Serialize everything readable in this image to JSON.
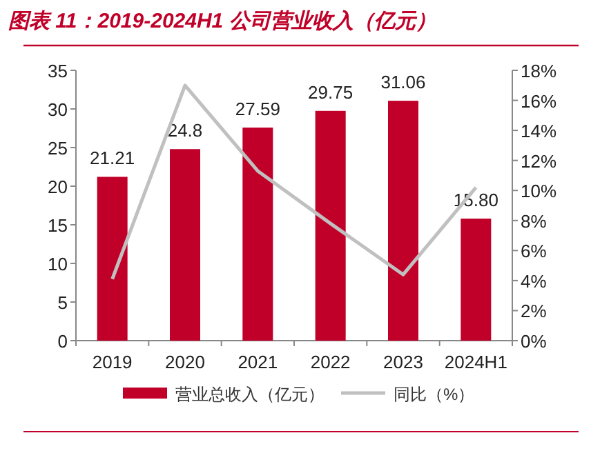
{
  "chart_data": {
    "type": "bar",
    "title": "图表 11：2019-2024H1 公司营业收入（亿元）",
    "categories": [
      "2019",
      "2020",
      "2021",
      "2022",
      "2023",
      "2024H1"
    ],
    "series": [
      {
        "name": "营业总收入（亿元）",
        "color": "#c00028",
        "values": [
          21.21,
          24.8,
          27.59,
          29.75,
          31.06,
          15.8
        ],
        "value_labels": [
          "21.21",
          "24.8",
          "27.59",
          "29.75",
          "31.06",
          "15.80"
        ]
      },
      {
        "name": "同比（%）",
        "type": "line",
        "axis": "y2",
        "color": "#c0c0c0",
        "values": [
          4.1,
          17.0,
          11.3,
          7.8,
          4.4,
          10.2
        ]
      }
    ],
    "ylim": [
      0,
      35
    ],
    "yticks": [
      0,
      5,
      10,
      15,
      20,
      25,
      30,
      35
    ],
    "y2lim": [
      0,
      18
    ],
    "y2ticks": [
      {
        "value": 0,
        "label": "0%"
      },
      {
        "value": 2,
        "label": "2%"
      },
      {
        "value": 4,
        "label": "4%"
      },
      {
        "value": 6,
        "label": "6%"
      },
      {
        "value": 8,
        "label": "8%"
      },
      {
        "value": 10,
        "label": "10%"
      },
      {
        "value": 12,
        "label": "12%"
      },
      {
        "value": 14,
        "label": "14%"
      },
      {
        "value": 16,
        "label": "16%"
      },
      {
        "value": 18,
        "label": "18%"
      }
    ],
    "grid": false,
    "legend": "bottom",
    "marker": "none",
    "line_style": "solid"
  }
}
